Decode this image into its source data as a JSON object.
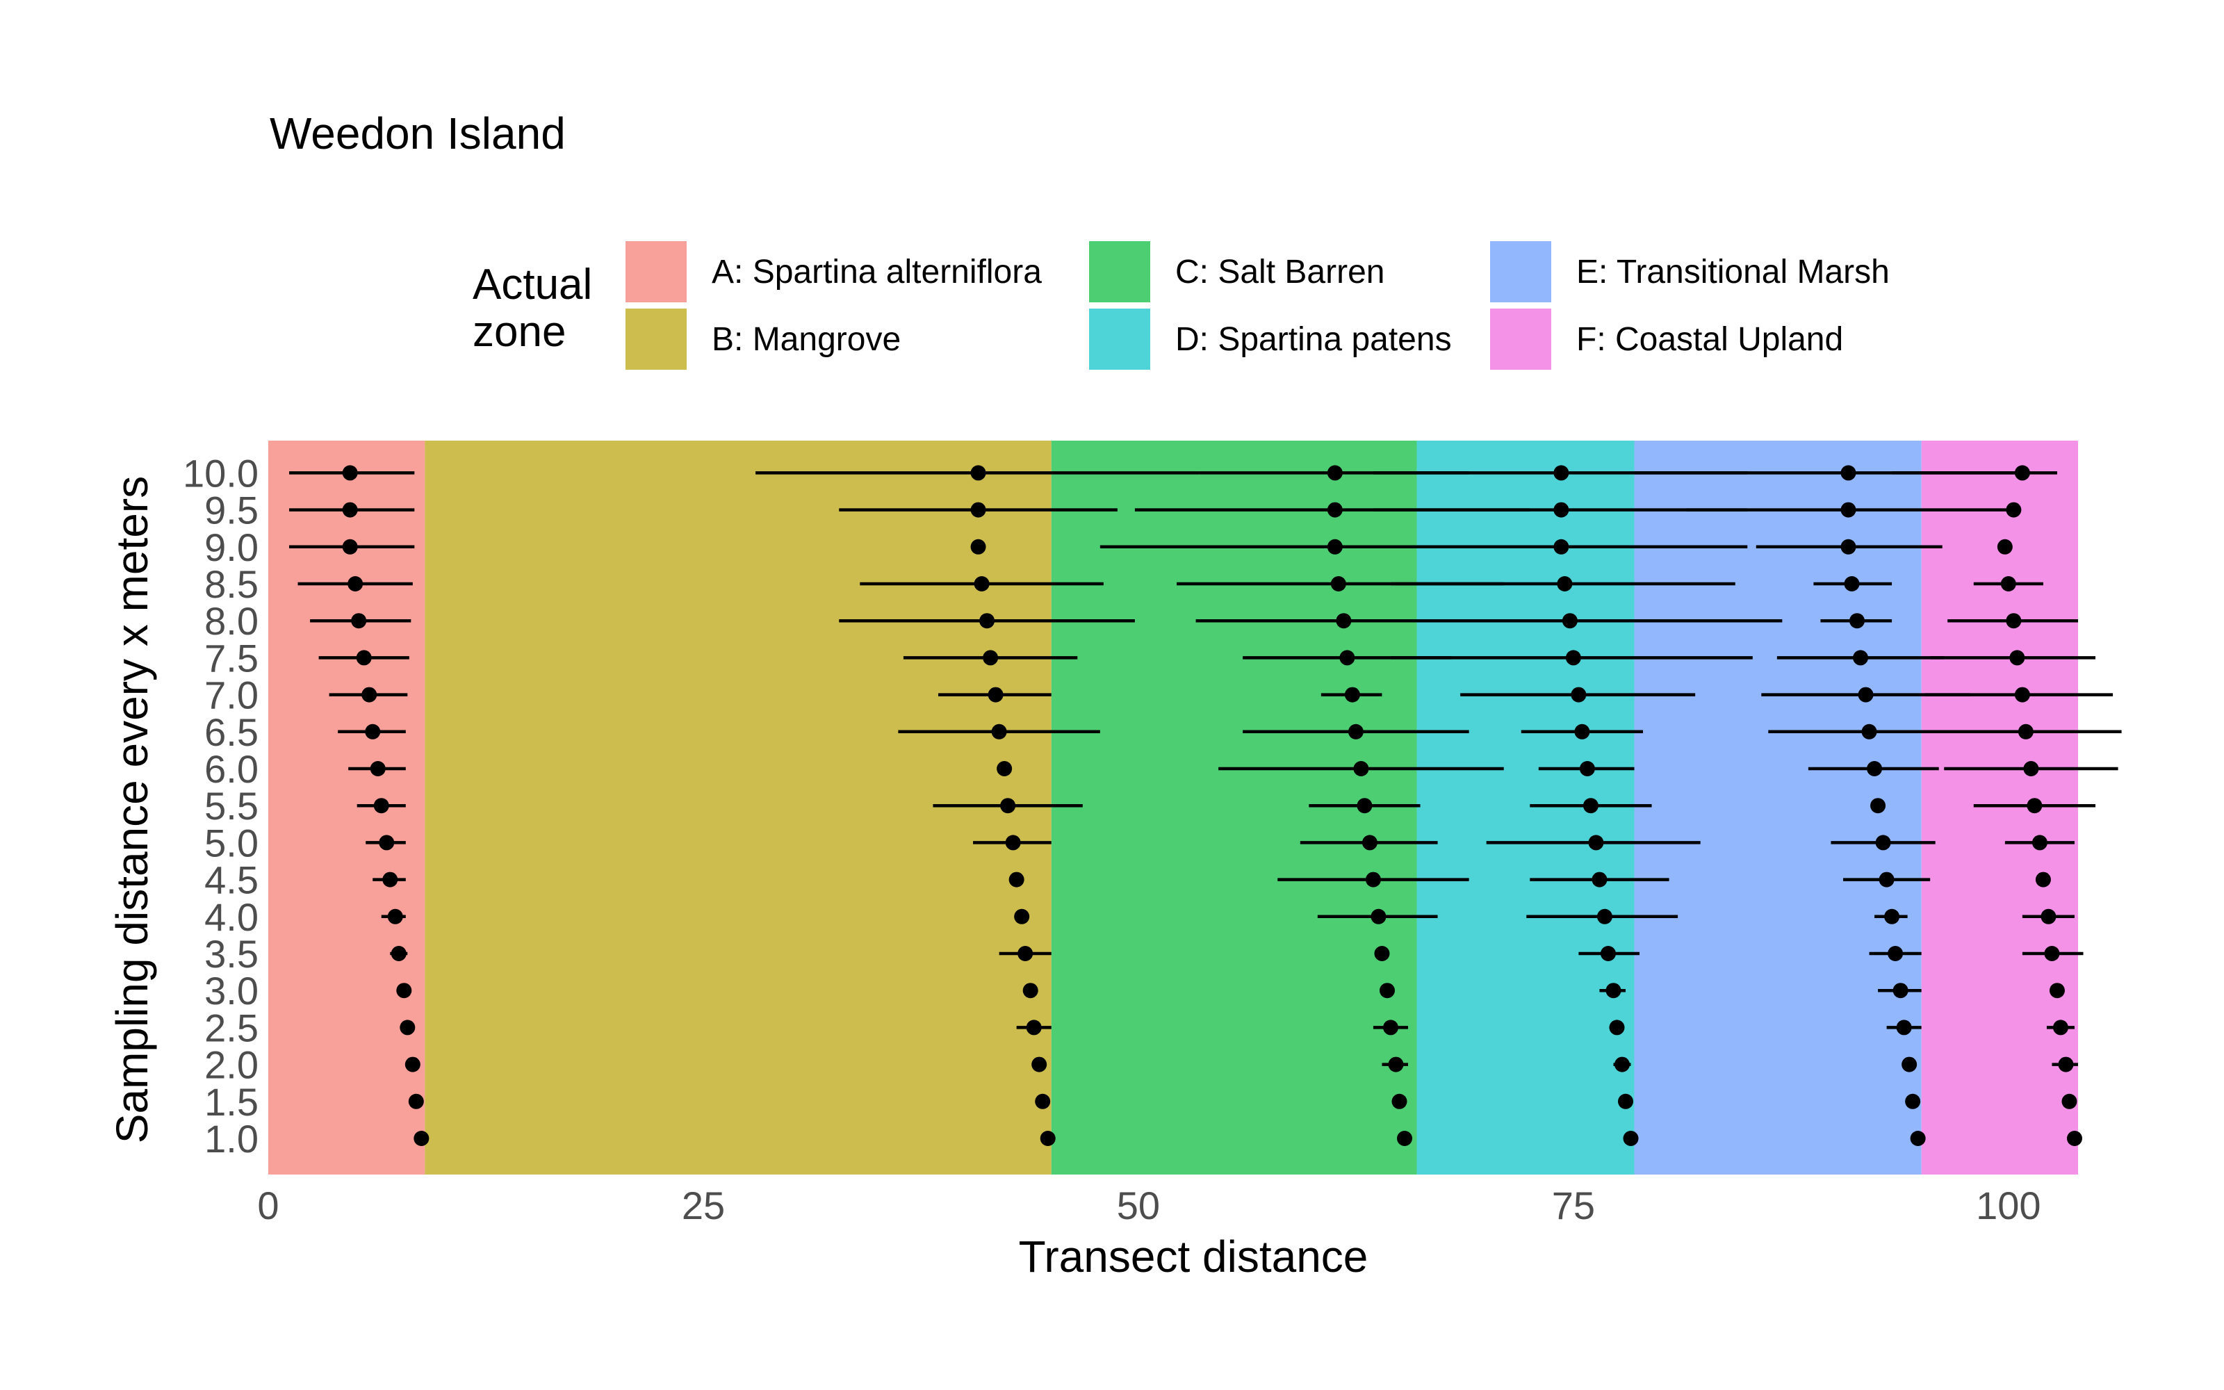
{
  "chart_data": {
    "type": "scatter",
    "title": "Weedon Island",
    "xlabel": "Transect distance",
    "ylabel": "Sampling distance every x meters",
    "xlim": [
      0,
      104
    ],
    "x_ticks": [
      0,
      25,
      50,
      75,
      100
    ],
    "y_ticks": [
      "1.0",
      "1.5",
      "2.0",
      "2.5",
      "3.0",
      "3.5",
      "4.0",
      "4.5",
      "5.0",
      "5.5",
      "6.0",
      "6.5",
      "7.0",
      "7.5",
      "8.0",
      "8.5",
      "9.0",
      "9.5",
      "10.0"
    ],
    "grid": false,
    "legend": {
      "title": "Actual\nzone",
      "position": "top",
      "entries": [
        {
          "label": "A: Spartina alterniflora",
          "color": "#F8A19A"
        },
        {
          "label": "B: Mangrove",
          "color": "#CDBC4E"
        },
        {
          "label": "C: Salt Barren",
          "color": "#4ECE72"
        },
        {
          "label": "D: Spartina patens",
          "color": "#4ED3D6"
        },
        {
          "label": "E: Transitional Marsh",
          "color": "#93B7FD"
        },
        {
          "label": "F: Coastal Upland",
          "color": "#F492E8"
        }
      ]
    },
    "zones": [
      {
        "label": "A: Spartina alterniflora",
        "start": 0,
        "end": 9
      },
      {
        "label": "B: Mangrove",
        "start": 9,
        "end": 45
      },
      {
        "label": "C: Salt Barren",
        "start": 45,
        "end": 66
      },
      {
        "label": "D: Spartina patens",
        "start": 66,
        "end": 78.5
      },
      {
        "label": "E: Transitional Marsh",
        "start": 78.5,
        "end": 95
      },
      {
        "label": "F: Coastal Upland",
        "start": 95,
        "end": 104
      }
    ],
    "series": [
      {
        "boundary": "A/B",
        "points": [
          {
            "y": 10.0,
            "x": 4.7,
            "lo": 1.2,
            "hi": 8.4
          },
          {
            "y": 9.5,
            "x": 4.7,
            "lo": 1.2,
            "hi": 8.4
          },
          {
            "y": 9.0,
            "x": 4.7,
            "lo": 1.2,
            "hi": 8.4
          },
          {
            "y": 8.5,
            "x": 5.0,
            "lo": 1.7,
            "hi": 8.3
          },
          {
            "y": 8.0,
            "x": 5.2,
            "lo": 2.4,
            "hi": 8.2
          },
          {
            "y": 7.5,
            "x": 5.5,
            "lo": 2.9,
            "hi": 8.1
          },
          {
            "y": 7.0,
            "x": 5.8,
            "lo": 3.5,
            "hi": 8.0
          },
          {
            "y": 6.5,
            "x": 6.0,
            "lo": 4.0,
            "hi": 7.9
          },
          {
            "y": 6.0,
            "x": 6.3,
            "lo": 4.6,
            "hi": 7.9
          },
          {
            "y": 5.5,
            "x": 6.5,
            "lo": 5.1,
            "hi": 7.9
          },
          {
            "y": 5.0,
            "x": 6.8,
            "lo": 5.6,
            "hi": 7.9
          },
          {
            "y": 4.5,
            "x": 7.0,
            "lo": 6.0,
            "hi": 7.9
          },
          {
            "y": 4.0,
            "x": 7.3,
            "lo": 6.5,
            "hi": 7.9
          },
          {
            "y": 3.5,
            "x": 7.5,
            "lo": 7.0,
            "hi": 8.0
          },
          {
            "y": 3.0,
            "x": 7.8,
            "lo": 7.8,
            "hi": 7.8
          },
          {
            "y": 2.5,
            "x": 8.0,
            "lo": 8.0,
            "hi": 8.0
          },
          {
            "y": 2.0,
            "x": 8.3,
            "lo": 8.3,
            "hi": 8.3
          },
          {
            "y": 1.5,
            "x": 8.5,
            "lo": 8.5,
            "hi": 8.5
          },
          {
            "y": 1.0,
            "x": 8.8,
            "lo": 8.8,
            "hi": 8.8
          }
        ]
      },
      {
        "boundary": "B/C",
        "points": [
          {
            "y": 10.0,
            "x": 40.8,
            "lo": 28.0,
            "hi": 53.5
          },
          {
            "y": 9.5,
            "x": 40.8,
            "lo": 32.8,
            "hi": 48.8
          },
          {
            "y": 9.0,
            "x": 40.8,
            "lo": 40.8,
            "hi": 40.8
          },
          {
            "y": 8.5,
            "x": 41.0,
            "lo": 34.0,
            "hi": 48.0
          },
          {
            "y": 8.0,
            "x": 41.3,
            "lo": 32.8,
            "hi": 49.8
          },
          {
            "y": 7.5,
            "x": 41.5,
            "lo": 36.5,
            "hi": 46.5
          },
          {
            "y": 7.0,
            "x": 41.8,
            "lo": 38.5,
            "hi": 45.0
          },
          {
            "y": 6.5,
            "x": 42.0,
            "lo": 36.2,
            "hi": 47.8
          },
          {
            "y": 6.0,
            "x": 42.3,
            "lo": 42.3,
            "hi": 42.3
          },
          {
            "y": 5.5,
            "x": 42.5,
            "lo": 38.2,
            "hi": 46.8
          },
          {
            "y": 5.0,
            "x": 42.8,
            "lo": 40.5,
            "hi": 45.0
          },
          {
            "y": 4.5,
            "x": 43.0,
            "lo": 43.0,
            "hi": 43.0
          },
          {
            "y": 4.0,
            "x": 43.3,
            "lo": 43.3,
            "hi": 43.3
          },
          {
            "y": 3.5,
            "x": 43.5,
            "lo": 42.0,
            "hi": 45.0
          },
          {
            "y": 3.0,
            "x": 43.8,
            "lo": 43.8,
            "hi": 43.8
          },
          {
            "y": 2.5,
            "x": 44.0,
            "lo": 43.0,
            "hi": 45.0
          },
          {
            "y": 2.0,
            "x": 44.3,
            "lo": 44.3,
            "hi": 44.3
          },
          {
            "y": 1.5,
            "x": 44.5,
            "lo": 44.5,
            "hi": 44.5
          },
          {
            "y": 1.0,
            "x": 44.8,
            "lo": 44.8,
            "hi": 44.8
          }
        ]
      },
      {
        "boundary": "C/D",
        "points": [
          {
            "y": 10.0,
            "x": 61.3,
            "lo": 53.5,
            "hi": 69.0
          },
          {
            "y": 9.5,
            "x": 61.3,
            "lo": 49.8,
            "hi": 72.5
          },
          {
            "y": 9.0,
            "x": 61.3,
            "lo": 47.8,
            "hi": 74.8
          },
          {
            "y": 8.5,
            "x": 61.5,
            "lo": 52.2,
            "hi": 71.0
          },
          {
            "y": 8.0,
            "x": 61.8,
            "lo": 53.3,
            "hi": 70.2
          },
          {
            "y": 7.5,
            "x": 62.0,
            "lo": 56.0,
            "hi": 68.0
          },
          {
            "y": 7.0,
            "x": 62.3,
            "lo": 60.5,
            "hi": 64.0
          },
          {
            "y": 6.5,
            "x": 62.5,
            "lo": 56.0,
            "hi": 69.0
          },
          {
            "y": 6.0,
            "x": 62.8,
            "lo": 54.6,
            "hi": 71.0
          },
          {
            "y": 5.5,
            "x": 63.0,
            "lo": 59.8,
            "hi": 66.2
          },
          {
            "y": 5.0,
            "x": 63.3,
            "lo": 59.3,
            "hi": 67.2
          },
          {
            "y": 4.5,
            "x": 63.5,
            "lo": 58.0,
            "hi": 69.0
          },
          {
            "y": 4.0,
            "x": 63.8,
            "lo": 60.3,
            "hi": 67.2
          },
          {
            "y": 3.5,
            "x": 64.0,
            "lo": 64.0,
            "hi": 64.0
          },
          {
            "y": 3.0,
            "x": 64.3,
            "lo": 64.3,
            "hi": 64.3
          },
          {
            "y": 2.5,
            "x": 64.5,
            "lo": 63.5,
            "hi": 65.5
          },
          {
            "y": 2.0,
            "x": 64.8,
            "lo": 64.0,
            "hi": 65.5
          },
          {
            "y": 1.5,
            "x": 65.0,
            "lo": 65.0,
            "hi": 65.0
          },
          {
            "y": 1.0,
            "x": 65.3,
            "lo": 65.3,
            "hi": 65.3
          }
        ]
      },
      {
        "boundary": "D/E",
        "points": [
          {
            "y": 10.0,
            "x": 74.3,
            "lo": 63.5,
            "hi": 85.0
          },
          {
            "y": 9.5,
            "x": 74.3,
            "lo": 63.5,
            "hi": 85.0
          },
          {
            "y": 9.0,
            "x": 74.3,
            "lo": 63.5,
            "hi": 85.0
          },
          {
            "y": 8.5,
            "x": 74.5,
            "lo": 64.5,
            "hi": 84.3
          },
          {
            "y": 8.0,
            "x": 74.8,
            "lo": 62.5,
            "hi": 87.0
          },
          {
            "y": 7.5,
            "x": 75.0,
            "lo": 64.5,
            "hi": 85.3
          },
          {
            "y": 7.0,
            "x": 75.3,
            "lo": 68.5,
            "hi": 82.0
          },
          {
            "y": 6.5,
            "x": 75.5,
            "lo": 72.0,
            "hi": 79.0
          },
          {
            "y": 6.0,
            "x": 75.8,
            "lo": 73.0,
            "hi": 78.5
          },
          {
            "y": 5.5,
            "x": 76.0,
            "lo": 72.5,
            "hi": 79.5
          },
          {
            "y": 5.0,
            "x": 76.3,
            "lo": 70.0,
            "hi": 82.3
          },
          {
            "y": 4.5,
            "x": 76.5,
            "lo": 72.5,
            "hi": 80.5
          },
          {
            "y": 4.0,
            "x": 76.8,
            "lo": 72.3,
            "hi": 81.0
          },
          {
            "y": 3.5,
            "x": 77.0,
            "lo": 75.3,
            "hi": 78.8
          },
          {
            "y": 3.0,
            "x": 77.3,
            "lo": 76.5,
            "hi": 78.0
          },
          {
            "y": 2.5,
            "x": 77.5,
            "lo": 77.5,
            "hi": 77.5
          },
          {
            "y": 2.0,
            "x": 77.8,
            "lo": 77.3,
            "hi": 78.3
          },
          {
            "y": 1.5,
            "x": 78.0,
            "lo": 78.0,
            "hi": 78.0
          },
          {
            "y": 1.0,
            "x": 78.3,
            "lo": 78.3,
            "hi": 78.3
          }
        ]
      },
      {
        "boundary": "E/F",
        "points": [
          {
            "y": 10.0,
            "x": 90.8,
            "lo": 78.5,
            "hi": 100.8
          },
          {
            "y": 9.5,
            "x": 90.8,
            "lo": 81.5,
            "hi": 100.3
          },
          {
            "y": 9.0,
            "x": 90.8,
            "lo": 85.5,
            "hi": 96.2
          },
          {
            "y": 8.5,
            "x": 91.0,
            "lo": 88.8,
            "hi": 93.3
          },
          {
            "y": 8.0,
            "x": 91.3,
            "lo": 89.2,
            "hi": 93.3
          },
          {
            "y": 7.5,
            "x": 91.5,
            "lo": 86.7,
            "hi": 96.3
          },
          {
            "y": 7.0,
            "x": 91.8,
            "lo": 85.8,
            "hi": 97.8
          },
          {
            "y": 6.5,
            "x": 92.0,
            "lo": 86.2,
            "hi": 97.8
          },
          {
            "y": 6.0,
            "x": 92.3,
            "lo": 88.5,
            "hi": 96.0
          },
          {
            "y": 5.5,
            "x": 92.5,
            "lo": 92.5,
            "hi": 92.5
          },
          {
            "y": 5.0,
            "x": 92.8,
            "lo": 89.8,
            "hi": 95.8
          },
          {
            "y": 4.5,
            "x": 93.0,
            "lo": 90.5,
            "hi": 95.5
          },
          {
            "y": 4.0,
            "x": 93.3,
            "lo": 92.3,
            "hi": 94.2
          },
          {
            "y": 3.5,
            "x": 93.5,
            "lo": 92.0,
            "hi": 95.0
          },
          {
            "y": 3.0,
            "x": 93.8,
            "lo": 92.5,
            "hi": 95.0
          },
          {
            "y": 2.5,
            "x": 94.0,
            "lo": 93.0,
            "hi": 95.0
          },
          {
            "y": 2.0,
            "x": 94.3,
            "lo": 94.3,
            "hi": 94.3
          },
          {
            "y": 1.5,
            "x": 94.5,
            "lo": 94.5,
            "hi": 94.5
          },
          {
            "y": 1.0,
            "x": 94.8,
            "lo": 94.8,
            "hi": 94.8
          }
        ]
      },
      {
        "boundary": "F end",
        "points": [
          {
            "y": 10.0,
            "x": 100.8,
            "lo": 93.3,
            "hi": 102.8
          },
          {
            "y": 9.5,
            "x": 100.3,
            "lo": 100.3,
            "hi": 100.3
          },
          {
            "y": 9.0,
            "x": 99.8,
            "lo": 99.8,
            "hi": 99.8
          },
          {
            "y": 8.5,
            "x": 100.0,
            "lo": 98.0,
            "hi": 102.0
          },
          {
            "y": 8.0,
            "x": 100.3,
            "lo": 96.5,
            "hi": 104.0
          },
          {
            "y": 7.5,
            "x": 100.5,
            "lo": 95.5,
            "hi": 105.0
          },
          {
            "y": 7.0,
            "x": 100.8,
            "lo": 95.2,
            "hi": 106.0
          },
          {
            "y": 6.5,
            "x": 101.0,
            "lo": 95.2,
            "hi": 106.5
          },
          {
            "y": 6.0,
            "x": 101.3,
            "lo": 96.3,
            "hi": 106.3
          },
          {
            "y": 5.5,
            "x": 101.5,
            "lo": 98.0,
            "hi": 105.0
          },
          {
            "y": 5.0,
            "x": 101.8,
            "lo": 99.8,
            "hi": 103.8
          },
          {
            "y": 4.5,
            "x": 102.0,
            "lo": 102.0,
            "hi": 102.0
          },
          {
            "y": 4.0,
            "x": 102.3,
            "lo": 100.8,
            "hi": 103.8
          },
          {
            "y": 3.5,
            "x": 102.5,
            "lo": 100.8,
            "hi": 104.3
          },
          {
            "y": 3.0,
            "x": 102.8,
            "lo": 102.8,
            "hi": 102.8
          },
          {
            "y": 2.5,
            "x": 103.0,
            "lo": 102.2,
            "hi": 103.8
          },
          {
            "y": 2.0,
            "x": 103.3,
            "lo": 102.5,
            "hi": 104.0
          },
          {
            "y": 1.5,
            "x": 103.5,
            "lo": 103.5,
            "hi": 103.5
          },
          {
            "y": 1.0,
            "x": 103.8,
            "lo": 103.8,
            "hi": 103.8
          }
        ]
      }
    ]
  }
}
